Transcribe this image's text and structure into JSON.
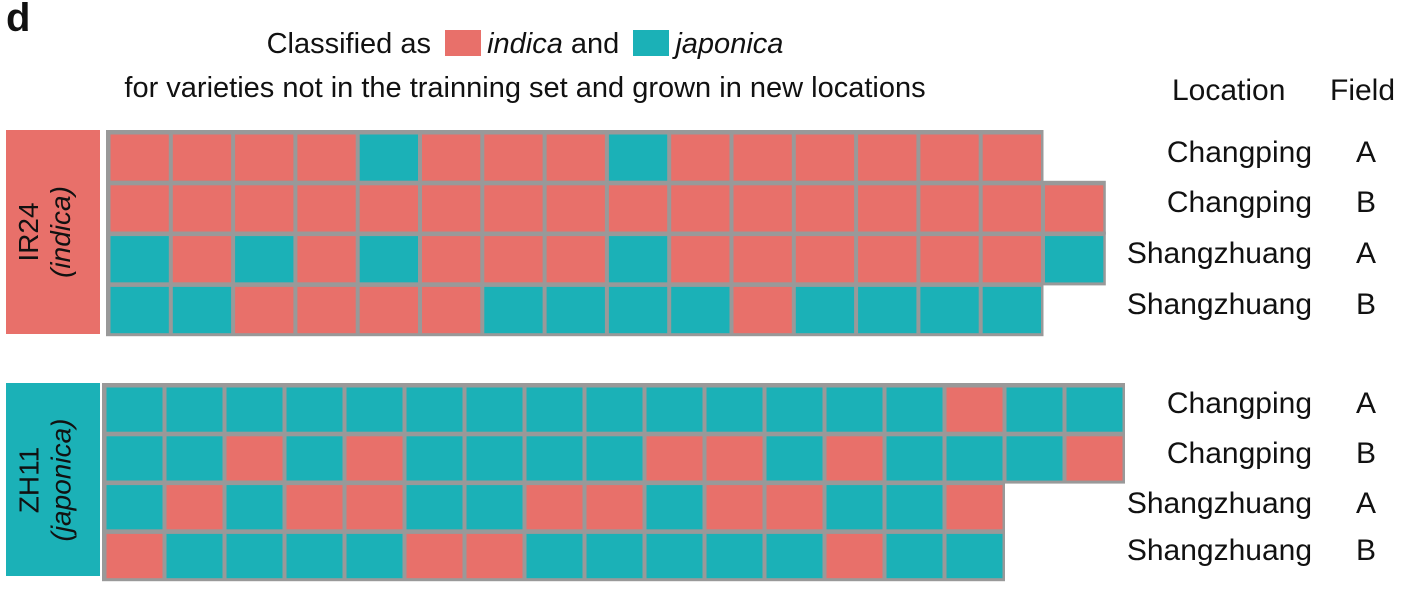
{
  "panel_letter": "d",
  "title": {
    "prefix": "Classified as",
    "indica": "indica",
    "and": "and",
    "japonica": "japonica",
    "line2": "for varieties not in the trainning set and grown in new locations"
  },
  "headers": {
    "location": "Location",
    "field": "Field"
  },
  "colors": {
    "indica": "#E8706A",
    "japonica": "#1BB1B7",
    "border": "#999999"
  },
  "chart_data": {
    "type": "heatmap",
    "legend": [
      {
        "label": "indica",
        "code": "I",
        "color": "#E8706A"
      },
      {
        "label": "japonica",
        "code": "J",
        "color": "#1BB1B7"
      }
    ],
    "groups": [
      {
        "name": "IR24",
        "subname": "(indica)",
        "color": "#E8706A",
        "rows": [
          {
            "location": "Changping",
            "field": "A",
            "cells": [
              "I",
              "I",
              "I",
              "I",
              "J",
              "I",
              "I",
              "I",
              "J",
              "I",
              "I",
              "I",
              "I",
              "I",
              "I"
            ]
          },
          {
            "location": "Changping",
            "field": "B",
            "cells": [
              "I",
              "I",
              "I",
              "I",
              "I",
              "I",
              "I",
              "I",
              "I",
              "I",
              "I",
              "I",
              "I",
              "I",
              "I",
              "I"
            ]
          },
          {
            "location": "Shangzhuang",
            "field": "A",
            "cells": [
              "J",
              "I",
              "J",
              "I",
              "J",
              "I",
              "I",
              "I",
              "J",
              "I",
              "I",
              "I",
              "I",
              "I",
              "I",
              "J"
            ]
          },
          {
            "location": "Shangzhuang",
            "field": "B",
            "cells": [
              "J",
              "J",
              "I",
              "I",
              "I",
              "I",
              "J",
              "J",
              "J",
              "J",
              "I",
              "J",
              "J",
              "J",
              "J"
            ]
          }
        ]
      },
      {
        "name": "ZH11",
        "subname": "(japonica)",
        "color": "#1BB1B7",
        "rows": [
          {
            "location": "Changping",
            "field": "A",
            "cells": [
              "J",
              "J",
              "J",
              "J",
              "J",
              "J",
              "J",
              "J",
              "J",
              "J",
              "J",
              "J",
              "J",
              "J",
              "I",
              "J",
              "J"
            ]
          },
          {
            "location": "Changping",
            "field": "B",
            "cells": [
              "J",
              "J",
              "I",
              "J",
              "I",
              "J",
              "J",
              "J",
              "J",
              "I",
              "I",
              "J",
              "I",
              "J",
              "J",
              "J",
              "I"
            ]
          },
          {
            "location": "Shangzhuang",
            "field": "A",
            "cells": [
              "J",
              "I",
              "J",
              "I",
              "I",
              "J",
              "J",
              "I",
              "I",
              "J",
              "I",
              "I",
              "J",
              "J",
              "I"
            ]
          },
          {
            "location": "Shangzhuang",
            "field": "B",
            "cells": [
              "I",
              "J",
              "J",
              "J",
              "J",
              "I",
              "I",
              "J",
              "J",
              "J",
              "J",
              "J",
              "I",
              "J",
              "J"
            ]
          }
        ]
      }
    ]
  }
}
